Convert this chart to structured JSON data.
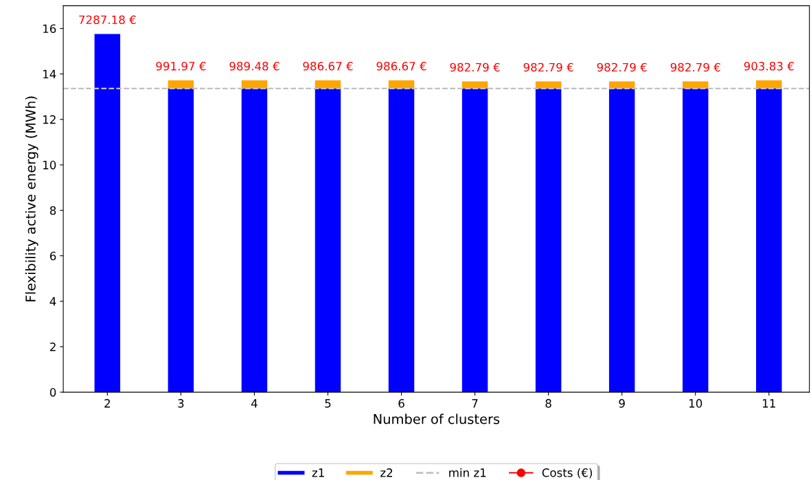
{
  "chart_data": {
    "type": "bar",
    "stacked": true,
    "xlabel": "Number of clusters",
    "ylabel": "Flexibility active energy (MWh)",
    "categories": [
      "2",
      "3",
      "4",
      "5",
      "6",
      "7",
      "8",
      "9",
      "10",
      "11"
    ],
    "series": [
      {
        "name": "z1",
        "color": "#0000ff",
        "values": [
          15.76,
          13.36,
          13.36,
          13.36,
          13.36,
          13.36,
          13.36,
          13.36,
          13.36,
          13.36
        ]
      },
      {
        "name": "z2",
        "color": "#ffa500",
        "values": [
          0,
          0.36,
          0.36,
          0.36,
          0.36,
          0.31,
          0.31,
          0.31,
          0.31,
          0.36
        ]
      },
      {
        "name": "Costs (€)",
        "type": "line",
        "color": "#ff0000",
        "marker": "circle",
        "line_style": "solid",
        "values": [
          null,
          null,
          null,
          null,
          null,
          null,
          null,
          null,
          null,
          null
        ]
      }
    ],
    "ref_lines": [
      {
        "axis": "y",
        "value": 13.36,
        "label": "min z1",
        "color": "#c0c0c0",
        "line_style": "dashed"
      }
    ],
    "annotations": [
      {
        "text": "7287.18 €",
        "x": "2",
        "y": 15.76
      },
      {
        "text": "991.97 €",
        "x": "3",
        "y": 13.72
      },
      {
        "text": "989.48 €",
        "x": "4",
        "y": 13.72
      },
      {
        "text": "986.67 €",
        "x": "5",
        "y": 13.72
      },
      {
        "text": "986.67 €",
        "x": "6",
        "y": 13.72
      },
      {
        "text": "982.79 €",
        "x": "7",
        "y": 13.67
      },
      {
        "text": "982.79 €",
        "x": "8",
        "y": 13.67
      },
      {
        "text": "982.79 €",
        "x": "9",
        "y": 13.67
      },
      {
        "text": "982.79 €",
        "x": "10",
        "y": 13.67
      },
      {
        "text": "903.83 €",
        "x": "11",
        "y": 13.72
      }
    ],
    "ylim": [
      0,
      17
    ],
    "yticks": [
      0,
      2,
      4,
      6,
      8,
      10,
      12,
      14,
      16
    ],
    "grid": false,
    "legend": "bottom"
  }
}
